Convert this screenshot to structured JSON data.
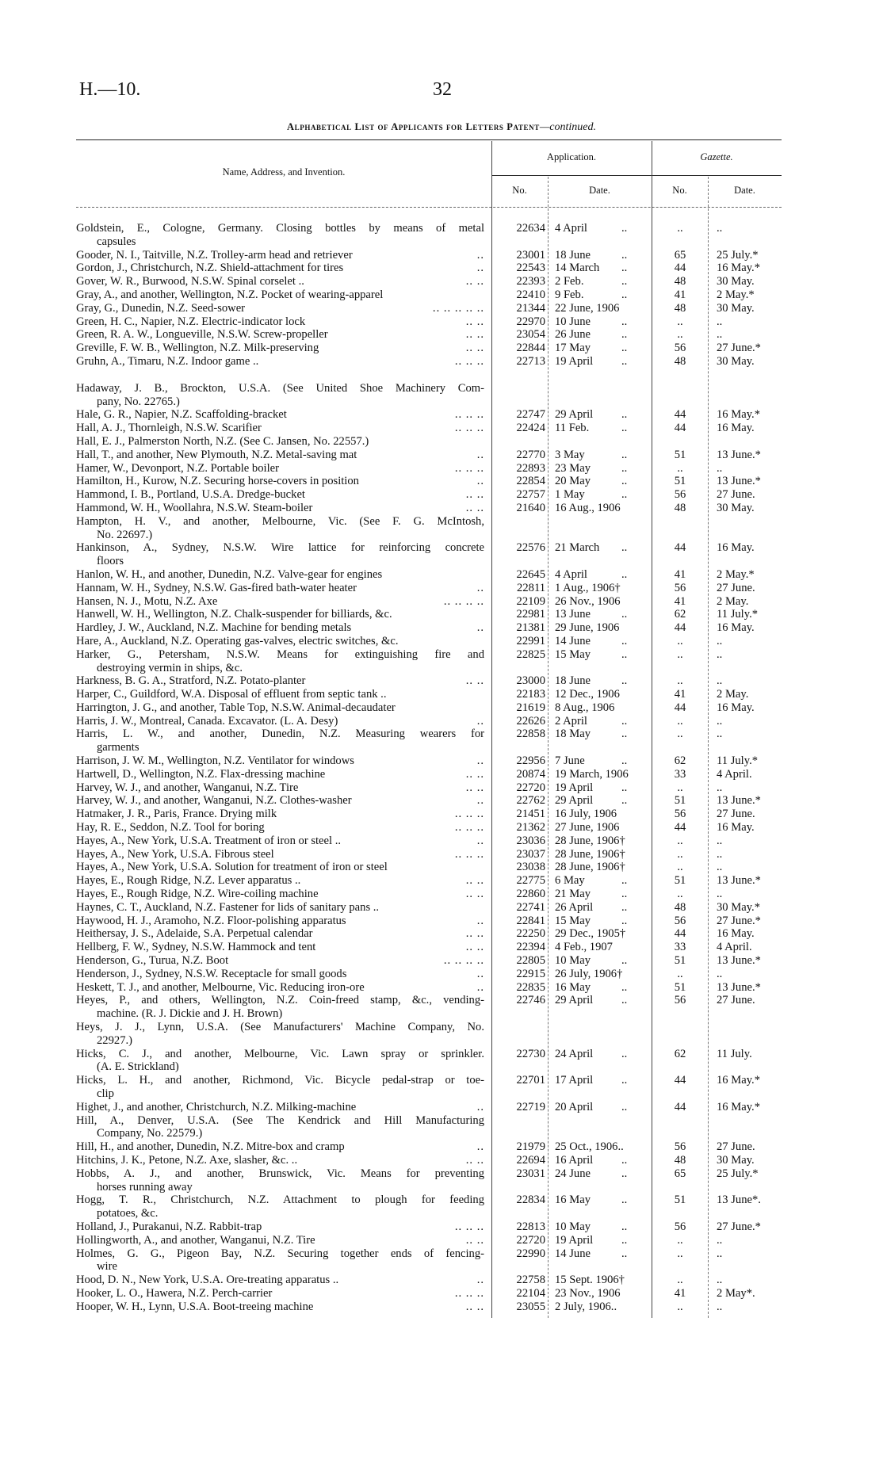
{
  "header": {
    "doc_ref": "H.—10.",
    "page_number": "32",
    "title": "Alphabetical List of Applicants for Letters Patent",
    "title_suffix": "—continued."
  },
  "table_header": {
    "name_col": "Name, Address, and Invention.",
    "application": "Application.",
    "gazette": "Gazette.",
    "no": "No.",
    "date": "Date."
  },
  "rows": [
    {
      "name": [
        "Goldstein, E., Cologne, Germany.  Closing bottles by means of metal",
        "capsules"
      ],
      "lead": "",
      "no": "22634",
      "date": "4 April",
      "dd": "..",
      "gno": "..",
      "gdate": ".."
    },
    {
      "name": [
        "Gooder, N. I., Taitville, N.Z.  Trolley-arm head and retriever"
      ],
      "lead": "..",
      "no": "23001",
      "date": "18 June",
      "dd": "..",
      "gno": "65",
      "gdate": "25 July.*"
    },
    {
      "name": [
        "Gordon, J., Christchurch, N.Z.  Shield-attachment for tires"
      ],
      "lead": "..",
      "no": "22543",
      "date": "14 March",
      "dd": "..",
      "gno": "44",
      "gdate": "16 May.*"
    },
    {
      "name": [
        "Gover, W. R., Burwood, N.S.W.  Spinal corselet .."
      ],
      "lead": "..      ..",
      "no": "22393",
      "date": "2 Feb.",
      "dd": "..",
      "gno": "48",
      "gdate": "30 May."
    },
    {
      "name": [
        "Gray, A., and another, Wellington, N.Z.  Pocket of wearing-apparel"
      ],
      "lead": "",
      "no": "22410",
      "date": "9 Feb.",
      "dd": "..",
      "gno": "41",
      "gdate": "2 May.*"
    },
    {
      "name": [
        "Gray, G., Dunedin, N.Z.  Seed-sower"
      ],
      "lead": "..      ..      ..      ..      ..",
      "no": "21344",
      "date": "22 June, 1906",
      "dd": "",
      "gno": "48",
      "gdate": "30 May."
    },
    {
      "name": [
        "Green, H. C., Napier, N.Z.  Electric-indicator lock"
      ],
      "lead": "..      ..",
      "no": "22970",
      "date": "10 June",
      "dd": "..",
      "gno": "..",
      "gdate": ".."
    },
    {
      "name": [
        "Green, R. A. W., Longueville, N.S.W.  Screw-propeller"
      ],
      "lead": "..      ..",
      "no": "23054",
      "date": "26 June",
      "dd": "..",
      "gno": "..",
      "gdate": ".."
    },
    {
      "name": [
        "Greville, F. W. B., Wellington, N.Z.  Milk-preserving"
      ],
      "lead": "..      ..",
      "no": "22844",
      "date": "17 May",
      "dd": "..",
      "gno": "56",
      "gdate": "27 June.*"
    },
    {
      "name": [
        "Gruhn, A., Timaru, N.Z.  Indoor game .."
      ],
      "lead": "..      ..      ..",
      "no": "22713",
      "date": "19 April",
      "dd": "..",
      "gno": "48",
      "gdate": "30 May."
    },
    {
      "gap": true
    },
    {
      "name": [
        "Hadaway, J. B., Brockton, U.S.A.  (See United Shoe Machinery Com-",
        "pany, No. 22765.)"
      ],
      "lead": "",
      "no": "",
      "date": "",
      "dd": "",
      "gno": "",
      "gdate": ""
    },
    {
      "name": [
        "Hale, G. R., Napier, N.Z.  Scaffolding-bracket"
      ],
      "lead": "..      ..      ..",
      "no": "22747",
      "date": "29 April",
      "dd": "..",
      "gno": "44",
      "gdate": "16 May.*"
    },
    {
      "name": [
        "Hall, A. J., Thornleigh, N.S.W.  Scarifier"
      ],
      "lead": "..      ..      ..",
      "no": "22424",
      "date": "11 Feb.",
      "dd": "..",
      "gno": "44",
      "gdate": "16 May."
    },
    {
      "name": [
        "Hall, E. J., Palmerston North, N.Z.  (See C. Jansen, No. 22557.)"
      ],
      "lead": "",
      "no": "",
      "date": "",
      "dd": "",
      "gno": "",
      "gdate": ""
    },
    {
      "name": [
        "Hall, T., and another, New Plymouth, N.Z.  Metal-saving mat"
      ],
      "lead": "..",
      "no": "22770",
      "date": "3 May",
      "dd": "..",
      "gno": "51",
      "gdate": "13 June.*"
    },
    {
      "name": [
        "Hamer, W., Devonport, N.Z.  Portable boiler"
      ],
      "lead": "..      ..      ..",
      "no": "22893",
      "date": "23 May",
      "dd": "..",
      "gno": "..",
      "gdate": ".."
    },
    {
      "name": [
        "Hamilton, H., Kurow, N.Z.  Securing horse-covers in position"
      ],
      "lead": "..",
      "no": "22854",
      "date": "20 May",
      "dd": "..",
      "gno": "51",
      "gdate": "13 June.*"
    },
    {
      "name": [
        "Hammond, I. B., Portland, U.S.A.  Dredge-bucket"
      ],
      "lead": "..      ..",
      "no": "22757",
      "date": "1 May",
      "dd": "..",
      "gno": "56",
      "gdate": "27 June."
    },
    {
      "name": [
        "Hammond, W. H., Woollahra, N.S.W.  Steam-boiler"
      ],
      "lead": "..      ..",
      "no": "21640",
      "date": "16 Aug., 1906",
      "dd": "",
      "gno": "48",
      "gdate": "30 May."
    },
    {
      "name": [
        "Hampton, H. V., and another, Melbourne, Vic.  (See F. G. McIntosh,",
        "No. 22697.)"
      ],
      "lead": "",
      "no": "",
      "date": "",
      "dd": "",
      "gno": "",
      "gdate": ""
    },
    {
      "name": [
        "Hankinson, A., Sydney, N.S.W.  Wire lattice for reinforcing concrete",
        "floors"
      ],
      "lead": "",
      "no": "22576",
      "date": "21 March",
      "dd": "..",
      "gno": "44",
      "gdate": "16 May."
    },
    {
      "name": [
        "Hanlon, W. H., and another, Dunedin, N.Z.  Valve-gear for engines"
      ],
      "lead": "",
      "no": "22645",
      "date": "4 April",
      "dd": "..",
      "gno": "41",
      "gdate": "2 May.*"
    },
    {
      "name": [
        "Hannam, W. H., Sydney, N.S.W.  Gas-fired bath-water heater"
      ],
      "lead": "..",
      "no": "22811",
      "date": "1 Aug., 1906†",
      "dd": "",
      "gno": "56",
      "gdate": "27 June."
    },
    {
      "name": [
        "Hansen, N. J., Motu, N.Z.  Axe"
      ],
      "lead": "..      ..      ..      ..",
      "no": "22109",
      "date": "26 Nov., 1906",
      "dd": "",
      "gno": "41",
      "gdate": "2 May."
    },
    {
      "name": [
        "Hanwell, W. H., Wellington, N.Z.  Chalk-suspender for billiards, &c."
      ],
      "lead": "",
      "no": "22981",
      "date": "13 June",
      "dd": "..",
      "gno": "62",
      "gdate": "11 July.*"
    },
    {
      "name": [
        "Hardley, J. W., Auckland, N.Z.  Machine for bending metals"
      ],
      "lead": "..",
      "no": "21381",
      "date": "29 June, 1906",
      "dd": "",
      "gno": "44",
      "gdate": "16 May."
    },
    {
      "name": [
        "Hare, A., Auckland, N.Z.  Operating gas-valves, electric switches, &c."
      ],
      "lead": "",
      "no": "22991",
      "date": "14 June",
      "dd": "..",
      "gno": "..",
      "gdate": ".."
    },
    {
      "name": [
        "Harker, G., Petersham, N.S.W.  Means for extinguishing fire and",
        "destroying vermin in ships, &c."
      ],
      "lead": "",
      "no": "22825",
      "date": "15 May",
      "dd": "..",
      "gno": "..",
      "gdate": ".."
    },
    {
      "name": [
        "Harkness, B. G. A., Stratford, N.Z.  Potato-planter"
      ],
      "lead": "..      ..",
      "no": "23000",
      "date": "18 June",
      "dd": "..",
      "gno": "..",
      "gdate": ".."
    },
    {
      "name": [
        "Harper, C., Guildford, W.A.  Disposal of effluent from septic tank .."
      ],
      "lead": "",
      "no": "22183",
      "date": "12 Dec., 1906",
      "dd": "",
      "gno": "41",
      "gdate": "2 May."
    },
    {
      "name": [
        "Harrington, J. G., and another, Table Top, N.S.W.  Animal-decaudater"
      ],
      "lead": "",
      "no": "21619",
      "date": "8 Aug., 1906",
      "dd": "",
      "gno": "44",
      "gdate": "16 May."
    },
    {
      "name": [
        "Harris, J. W., Montreal, Canada.  Excavator.  (L. A. Desy)"
      ],
      "lead": "..",
      "no": "22626",
      "date": "2 April",
      "dd": "..",
      "gno": "..",
      "gdate": ".."
    },
    {
      "name": [
        "Harris, L. W., and another, Dunedin, N.Z.  Measuring wearers for",
        "garments"
      ],
      "lead": "",
      "no": "22858",
      "date": "18 May",
      "dd": "..",
      "gno": "..",
      "gdate": ".."
    },
    {
      "name": [
        "Harrison, J. W. M., Wellington, N.Z.  Ventilator for windows"
      ],
      "lead": "..",
      "no": "22956",
      "date": "7 June",
      "dd": "..",
      "gno": "62",
      "gdate": "11 July.*"
    },
    {
      "name": [
        "Hartwell, D., Wellington, N.Z.  Flax-dressing machine"
      ],
      "lead": "..      ..",
      "no": "20874",
      "date": "19 March, 1906",
      "dd": "",
      "gno": "33",
      "gdate": "4 April."
    },
    {
      "name": [
        "Harvey, W. J., and another, Wanganui, N.Z.  Tire"
      ],
      "lead": "..      ..",
      "no": "22720",
      "date": "19 April",
      "dd": "..",
      "gno": "..",
      "gdate": ".."
    },
    {
      "name": [
        "Harvey, W. J., and another, Wanganui, N.Z.  Clothes-washer"
      ],
      "lead": "..",
      "no": "22762",
      "date": "29 April",
      "dd": "..",
      "gno": "51",
      "gdate": "13 June.*"
    },
    {
      "name": [
        "Hatmaker, J. R., Paris, France.  Drying milk"
      ],
      "lead": "..      ..      ..",
      "no": "21451",
      "date": "16 July, 1906",
      "dd": "",
      "gno": "56",
      "gdate": "27 June."
    },
    {
      "name": [
        "Hay, R. E., Seddon, N.Z.  Tool for boring"
      ],
      "lead": "..      ..      ..",
      "no": "21362",
      "date": "27 June, 1906",
      "dd": "",
      "gno": "44",
      "gdate": "16 May."
    },
    {
      "name": [
        "Hayes, A., New York, U.S.A.  Treatment of iron or steel .."
      ],
      "lead": "..",
      "no": "23036",
      "date": "28 June, 1906†",
      "dd": "",
      "gno": "..",
      "gdate": ".."
    },
    {
      "name": [
        "Hayes, A., New York, U.S.A.  Fibrous steel"
      ],
      "lead": "..      ..      ..",
      "no": "23037",
      "date": "28 June, 1906†",
      "dd": "",
      "gno": "..",
      "gdate": ".."
    },
    {
      "name": [
        "Hayes, A., New York, U.S.A.  Solution for treatment of iron or steel"
      ],
      "lead": "",
      "no": "23038",
      "date": "28 June, 1906†",
      "dd": "",
      "gno": "..",
      "gdate": ".."
    },
    {
      "name": [
        "Hayes, E., Rough Ridge, N.Z.  Lever apparatus .."
      ],
      "lead": "..      ..",
      "no": "22775",
      "date": "6 May",
      "dd": "..",
      "gno": "51",
      "gdate": "13 June.*"
    },
    {
      "name": [
        "Hayes, E., Rough Ridge, N.Z.  Wire-coiling machine"
      ],
      "lead": "..      ..",
      "no": "22860",
      "date": "21 May",
      "dd": "..",
      "gno": "..",
      "gdate": ".."
    },
    {
      "name": [
        "Haynes, C. T., Auckland, N.Z.  Fastener for lids of sanitary pans .."
      ],
      "lead": "",
      "no": "22741",
      "date": "26 April",
      "dd": "..",
      "gno": "48",
      "gdate": "30 May.*"
    },
    {
      "name": [
        "Haywood, H. J., Aramoho, N.Z.  Floor-polishing apparatus"
      ],
      "lead": "..",
      "no": "22841",
      "date": "15 May",
      "dd": "..",
      "gno": "56",
      "gdate": "27 June.*"
    },
    {
      "name": [
        "Heithersay, J. S., Adelaide, S.A.  Perpetual calendar"
      ],
      "lead": "..      ..",
      "no": "22250",
      "date": "29 Dec., 1905†",
      "dd": "",
      "gno": "44",
      "gdate": "16 May."
    },
    {
      "name": [
        "Hellberg, F. W., Sydney, N.S.W.  Hammock and tent"
      ],
      "lead": "..      ..",
      "no": "22394",
      "date": "4 Feb., 1907",
      "dd": "",
      "gno": "33",
      "gdate": "4 April."
    },
    {
      "name": [
        "Henderson, G., Turua, N.Z.  Boot"
      ],
      "lead": "..      ..      ..      ..",
      "no": "22805",
      "date": "10 May",
      "dd": "..",
      "gno": "51",
      "gdate": "13 June.*"
    },
    {
      "name": [
        "Henderson, J., Sydney, N.S.W.  Receptacle for small goods"
      ],
      "lead": "..",
      "no": "22915",
      "date": "26 July, 1906†",
      "dd": "",
      "gno": "..",
      "gdate": ".."
    },
    {
      "name": [
        "Heskett, T. J., and another, Melbourne, Vic.  Reducing iron-ore"
      ],
      "lead": "..",
      "no": "22835",
      "date": "16 May",
      "dd": "..",
      "gno": "51",
      "gdate": "13 June.*"
    },
    {
      "name": [
        "Heyes, P., and others, Wellington, N.Z.  Coin-freed stamp, &c., vending-",
        "machine.  (R. J. Dickie and J. H. Brown)"
      ],
      "lead": "",
      "no": "22746",
      "date": "29 April",
      "dd": "..",
      "gno": "56",
      "gdate": "27 June."
    },
    {
      "name": [
        "Heys, J. J., Lynn, U.S.A.  (See Manufacturers' Machine Company, No.",
        "22927.)"
      ],
      "lead": "",
      "no": "",
      "date": "",
      "dd": "",
      "gno": "",
      "gdate": ""
    },
    {
      "name": [
        "Hicks, C. J., and another, Melbourne, Vic.  Lawn spray or sprinkler.",
        "(A. E. Strickland)"
      ],
      "lead": "",
      "no": "22730",
      "date": "24 April",
      "dd": "..",
      "gno": "62",
      "gdate": "11 July."
    },
    {
      "name": [
        "Hicks, L. H., and another, Richmond, Vic.  Bicycle pedal-strap or toe-",
        "clip"
      ],
      "lead": "",
      "no": "22701",
      "date": "17 April",
      "dd": "..",
      "gno": "44",
      "gdate": "16 May.*"
    },
    {
      "name": [
        "Highet, J., and another, Christchurch, N.Z.  Milking-machine"
      ],
      "lead": "..",
      "no": "22719",
      "date": "20 April",
      "dd": "..",
      "gno": "44",
      "gdate": "16 May.*"
    },
    {
      "name": [
        "Hill, A., Denver, U.S.A.  (See The Kendrick and Hill Manufacturing",
        "Company, No. 22579.)"
      ],
      "lead": "",
      "no": "",
      "date": "",
      "dd": "",
      "gno": "",
      "gdate": ""
    },
    {
      "name": [
        "Hill, H., and another, Dunedin, N.Z.  Mitre-box and cramp"
      ],
      "lead": "..",
      "no": "21979",
      "date": "25 Oct., 1906..",
      "dd": "",
      "gno": "56",
      "gdate": "27 June."
    },
    {
      "name": [
        "Hitchins, J. K., Petone, N.Z.  Axe, slasher, &c. .."
      ],
      "lead": "..      ..",
      "no": "22694",
      "date": "16 April",
      "dd": "..",
      "gno": "48",
      "gdate": "30 May."
    },
    {
      "name": [
        "Hobbs, A. J., and another, Brunswick, Vic.  Means for preventing",
        "horses running away"
      ],
      "lead": "",
      "no": "23031",
      "date": "24 June",
      "dd": "..",
      "gno": "65",
      "gdate": "25 July.*"
    },
    {
      "name": [
        "Hogg, T. R., Christchurch, N.Z.  Attachment to plough for feeding",
        "potatoes, &c."
      ],
      "lead": "",
      "no": "22834",
      "date": "16 May",
      "dd": "..",
      "gno": "51",
      "gdate": "13 June*."
    },
    {
      "name": [
        "Holland, J., Purakanui, N.Z.  Rabbit-trap"
      ],
      "lead": "..      ..      ..",
      "no": "22813",
      "date": "10 May",
      "dd": "..",
      "gno": "56",
      "gdate": "27 June.*"
    },
    {
      "name": [
        "Hollingworth, A., and another, Wanganui, N.Z.  Tire"
      ],
      "lead": "..      ..",
      "no": "22720",
      "date": "19 April",
      "dd": "..",
      "gno": "..",
      "gdate": ".."
    },
    {
      "name": [
        "Holmes, G. G., Pigeon Bay, N.Z.  Securing together ends of fencing-",
        "wire"
      ],
      "lead": "",
      "no": "22990",
      "date": "14 June",
      "dd": "..",
      "gno": "..",
      "gdate": ".."
    },
    {
      "name": [
        "Hood, D. N., New York, U.S.A.  Ore-treating apparatus .."
      ],
      "lead": "..",
      "no": "22758",
      "date": "15 Sept. 1906†",
      "dd": "",
      "gno": "..",
      "gdate": ".."
    },
    {
      "name": [
        "Hooker, L. O., Hawera, N.Z.  Perch-carrier"
      ],
      "lead": "..      ..      ..",
      "no": "22104",
      "date": "23 Nov., 1906",
      "dd": "",
      "gno": "41",
      "gdate": "2 May*."
    },
    {
      "name": [
        "Hooper, W. H., Lynn, U.S.A.  Boot-treeing machine"
      ],
      "lead": "..      ..",
      "no": "23055",
      "date": "2 July, 1906..",
      "dd": "",
      "gno": "..",
      "gdate": ".."
    }
  ]
}
